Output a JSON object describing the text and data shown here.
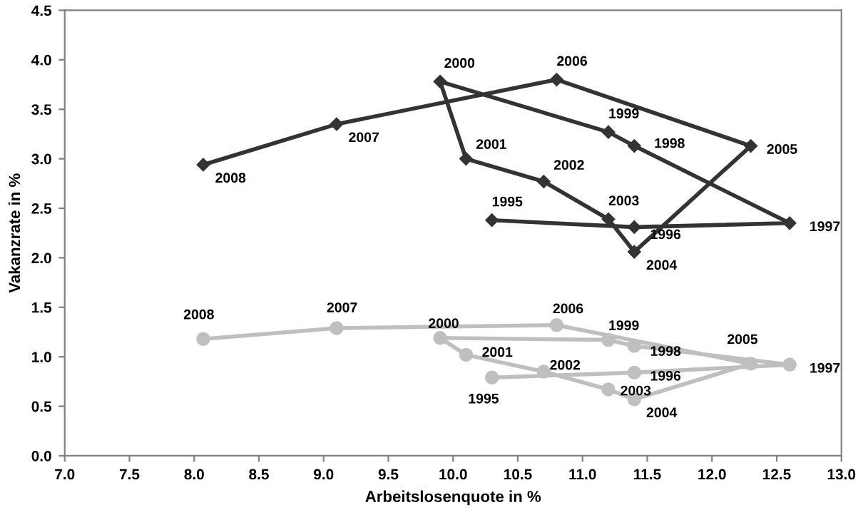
{
  "chart_data": {
    "type": "line",
    "xlabel": "Arbeitslosenquote in %",
    "ylabel": "Vakanzrate in %",
    "xlim": [
      7.0,
      13.0
    ],
    "ylim": [
      0.0,
      4.5
    ],
    "xticks": [
      {
        "value": 7,
        "label": "7.0"
      },
      {
        "value": 7.5,
        "label": "7.5"
      },
      {
        "value": 8,
        "label": "8.0"
      },
      {
        "value": 8.5,
        "label": "8.5"
      },
      {
        "value": 9,
        "label": "9.0"
      },
      {
        "value": 9.5,
        "label": "9.5"
      },
      {
        "value": 10,
        "label": "10.0"
      },
      {
        "value": 10.5,
        "label": "10.5"
      },
      {
        "value": 11,
        "label": "11.0"
      },
      {
        "value": 11.5,
        "label": "11.5"
      },
      {
        "value": 12,
        "label": "12.0"
      },
      {
        "value": 12.5,
        "label": "12.5"
      },
      {
        "value": 13,
        "label": "13.0"
      }
    ],
    "yticks": [
      {
        "value": 0,
        "label": "0.0"
      },
      {
        "value": 0.5,
        "label": "0.5"
      },
      {
        "value": 1,
        "label": "1.0"
      },
      {
        "value": 1.5,
        "label": "1.5"
      },
      {
        "value": 2,
        "label": "2.0"
      },
      {
        "value": 2.5,
        "label": "2.5"
      },
      {
        "value": 3,
        "label": "3.0"
      },
      {
        "value": 3.5,
        "label": "3.5"
      },
      {
        "value": 4,
        "label": "4.0"
      },
      {
        "value": 4.5,
        "label": "4.5"
      }
    ],
    "grid": false,
    "line_style": "solid",
    "series": [
      {
        "color": "#333333",
        "marker": "diamond",
        "x": [
          10.3,
          11.4,
          12.6,
          11.4,
          11.2,
          9.9,
          10.1,
          10.7,
          11.2,
          11.4,
          12.3,
          10.8,
          9.1,
          8.07
        ],
        "values": [
          2.38,
          2.31,
          2.35,
          3.13,
          3.27,
          3.78,
          3.0,
          2.77,
          2.39,
          2.06,
          3.13,
          3.8,
          3.35,
          2.94
        ]
      },
      {
        "color": "#bfbfbf",
        "marker": "circle",
        "x": [
          10.3,
          11.4,
          12.6,
          11.4,
          11.2,
          9.9,
          10.1,
          10.7,
          11.2,
          11.4,
          12.3,
          10.8,
          9.1,
          8.07
        ],
        "values": [
          0.79,
          0.84,
          0.92,
          1.11,
          1.17,
          1.19,
          1.02,
          0.85,
          0.67,
          0.57,
          0.93,
          1.32,
          1.29,
          1.18
        ]
      }
    ],
    "annotations": [
      {
        "text": "1995",
        "x": 10.3,
        "y": 2.38
      },
      {
        "text": "1996",
        "x": 11.4,
        "y": 2.31
      },
      {
        "text": "1997",
        "x": 12.6,
        "y": 2.35
      },
      {
        "text": "1998",
        "x": 11.4,
        "y": 3.13
      },
      {
        "text": "1999",
        "x": 11.2,
        "y": 3.27
      },
      {
        "text": "2000",
        "x": 9.9,
        "y": 3.78
      },
      {
        "text": "2001",
        "x": 10.1,
        "y": 3.0
      },
      {
        "text": "2002",
        "x": 10.7,
        "y": 2.77
      },
      {
        "text": "2003",
        "x": 11.2,
        "y": 2.39
      },
      {
        "text": "2004",
        "x": 11.4,
        "y": 2.06
      },
      {
        "text": "2005",
        "x": 12.3,
        "y": 3.13
      },
      {
        "text": "2006",
        "x": 10.8,
        "y": 3.8
      },
      {
        "text": "2007",
        "x": 9.1,
        "y": 3.35
      },
      {
        "text": "2008",
        "x": 8.07,
        "y": 2.94
      },
      {
        "text": "1995",
        "x": 10.3,
        "y": 0.79
      },
      {
        "text": "1996",
        "x": 11.4,
        "y": 0.84
      },
      {
        "text": "1997",
        "x": 12.6,
        "y": 0.92
      },
      {
        "text": "1998",
        "x": 11.4,
        "y": 1.11
      },
      {
        "text": "1999",
        "x": 11.2,
        "y": 1.17
      },
      {
        "text": "2000",
        "x": 9.9,
        "y": 1.19
      },
      {
        "text": "2001",
        "x": 10.1,
        "y": 1.02
      },
      {
        "text": "2002",
        "x": 10.7,
        "y": 0.85
      },
      {
        "text": "2003",
        "x": 11.2,
        "y": 0.67
      },
      {
        "text": "2004",
        "x": 11.4,
        "y": 0.57
      },
      {
        "text": "2005",
        "x": 12.3,
        "y": 0.93
      },
      {
        "text": "2006",
        "x": 10.8,
        "y": 1.32
      },
      {
        "text": "2007",
        "x": 9.1,
        "y": 1.29
      },
      {
        "text": "2008",
        "x": 8.07,
        "y": 1.18
      }
    ]
  }
}
